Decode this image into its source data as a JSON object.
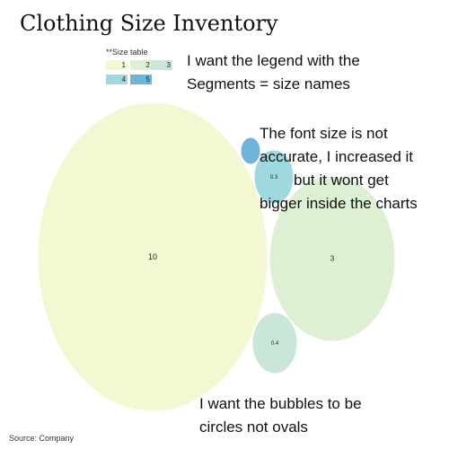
{
  "chart_data": {
    "type": "bubble",
    "title": "Clothing Size Inventory",
    "legend": {
      "title": "**Size table",
      "entries": [
        {
          "label": "1",
          "color": "#f3f8d3"
        },
        {
          "label": "2",
          "color": "#ddf0d3"
        },
        {
          "label": "3",
          "color": "#c8e7d8"
        },
        {
          "label": "4",
          "color": "#9dd9de"
        },
        {
          "label": "5",
          "color": "#6fb3d8"
        }
      ]
    },
    "bubbles": [
      {
        "segment": "1",
        "value": 10,
        "label": "10",
        "color": "#f3f8d3"
      },
      {
        "segment": "2",
        "value": 3,
        "label": "3",
        "color": "#ddf0d3"
      },
      {
        "segment": "3",
        "value": 0.4,
        "label": "0.4",
        "color": "#c8e7d8"
      },
      {
        "segment": "4",
        "value": 0.3,
        "label": "0.3",
        "color": "#9dd9de"
      },
      {
        "segment": "5",
        "value": 0.1,
        "label": "",
        "color": "#6fb3d8"
      }
    ],
    "source": "Source: Company"
  },
  "annotations": {
    "note1": [
      "I want the legend with the",
      "Segments = size names"
    ],
    "note2": [
      "The font size is not",
      "accurate, I increased it",
      "but it wont get",
      "bigger inside the charts"
    ],
    "note3": [
      "I want the bubbles to be",
      "circles not ovals"
    ]
  }
}
